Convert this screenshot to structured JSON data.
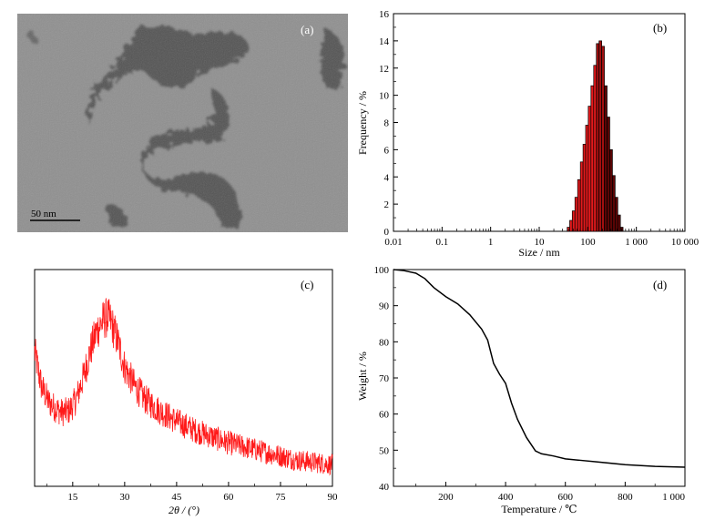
{
  "panels": {
    "a": {
      "label": "(a)",
      "scalebar": "50 nm"
    },
    "b": {
      "label": "(b)"
    },
    "c": {
      "label": "(c)"
    },
    "d": {
      "label": "(d)"
    }
  },
  "colors": {
    "bar_red": "#e31a1c",
    "bar_dark": "#3a0000",
    "xrd_line": "#ff1a1a",
    "tga_line": "#000000"
  },
  "chart_data": [
    {
      "panel": "b",
      "type": "bar",
      "title": "",
      "xlabel": "Size / nm",
      "ylabel": "Frequency / %",
      "xscale": "log",
      "xlim": [
        0.01,
        10000
      ],
      "ylim": [
        0,
        16
      ],
      "xticks": [
        0.01,
        0.1,
        1,
        10,
        100,
        1000,
        10000
      ],
      "xtick_labels": [
        "0.01",
        "0.1",
        "1",
        "10",
        "100",
        "1 000",
        "10 000"
      ],
      "yticks": [
        0,
        2,
        4,
        6,
        8,
        10,
        12,
        14,
        16
      ],
      "ytick_labels": [
        "0",
        "2",
        "4",
        "6",
        "8",
        "10",
        "12",
        "14",
        "16"
      ],
      "categories": [
        40,
        45,
        51,
        58,
        66,
        75,
        85,
        96,
        109,
        124,
        141,
        160,
        182,
        206,
        234,
        266,
        302,
        343,
        389,
        441,
        500
      ],
      "values": [
        0.3,
        0.8,
        1.5,
        2.5,
        3.8,
        5.1,
        6.4,
        7.8,
        9.2,
        10.7,
        12.2,
        13.8,
        14.0,
        13.6,
        10.7,
        8.4,
        6.0,
        4.1,
        2.5,
        1.2,
        0.3
      ]
    },
    {
      "panel": "c",
      "type": "line",
      "title": "",
      "xlabel": "2θ / (°)",
      "ylabel": "",
      "xlim": [
        4,
        90
      ],
      "xticks": [
        15,
        30,
        45,
        60,
        75,
        90
      ],
      "xtick_labels": [
        "15",
        "30",
        "45",
        "60",
        "75",
        "90"
      ],
      "y_axis_labels": false,
      "x": [
        4,
        6,
        8,
        10,
        12,
        14,
        16,
        18,
        20,
        22,
        24,
        25,
        26,
        28,
        30,
        33,
        36,
        40,
        45,
        50,
        55,
        60,
        65,
        70,
        75,
        80,
        85,
        90
      ],
      "values": [
        0.62,
        0.46,
        0.39,
        0.36,
        0.34,
        0.35,
        0.4,
        0.5,
        0.62,
        0.72,
        0.77,
        0.78,
        0.76,
        0.67,
        0.55,
        0.46,
        0.4,
        0.35,
        0.3,
        0.26,
        0.23,
        0.2,
        0.18,
        0.16,
        0.14,
        0.12,
        0.11,
        0.1
      ],
      "noise_amplitude": 0.07
    },
    {
      "panel": "d",
      "type": "line",
      "title": "",
      "xlabel": "Temperature / ℃",
      "ylabel": "Weight / %",
      "xlim": [
        25,
        1000
      ],
      "ylim": [
        40,
        100
      ],
      "xticks": [
        200,
        400,
        600,
        800,
        1000
      ],
      "xtick_labels": [
        "200",
        "400",
        "600",
        "800",
        "1 000"
      ],
      "yticks": [
        40,
        50,
        60,
        70,
        80,
        90,
        100
      ],
      "ytick_labels": [
        "40",
        "50",
        "60",
        "70",
        "80",
        "90",
        "100"
      ],
      "x": [
        25,
        60,
        100,
        130,
        160,
        200,
        240,
        280,
        320,
        340,
        360,
        380,
        400,
        420,
        440,
        470,
        500,
        520,
        560,
        600,
        650,
        700,
        800,
        900,
        1000
      ],
      "values": [
        100,
        99.7,
        99,
        97.5,
        95,
        92.5,
        90.5,
        87.5,
        83.5,
        80.5,
        74,
        71,
        68.5,
        63,
        58.5,
        53.5,
        49.8,
        49,
        48.4,
        47.6,
        47.2,
        46.8,
        46,
        45.5,
        45.3
      ]
    }
  ]
}
